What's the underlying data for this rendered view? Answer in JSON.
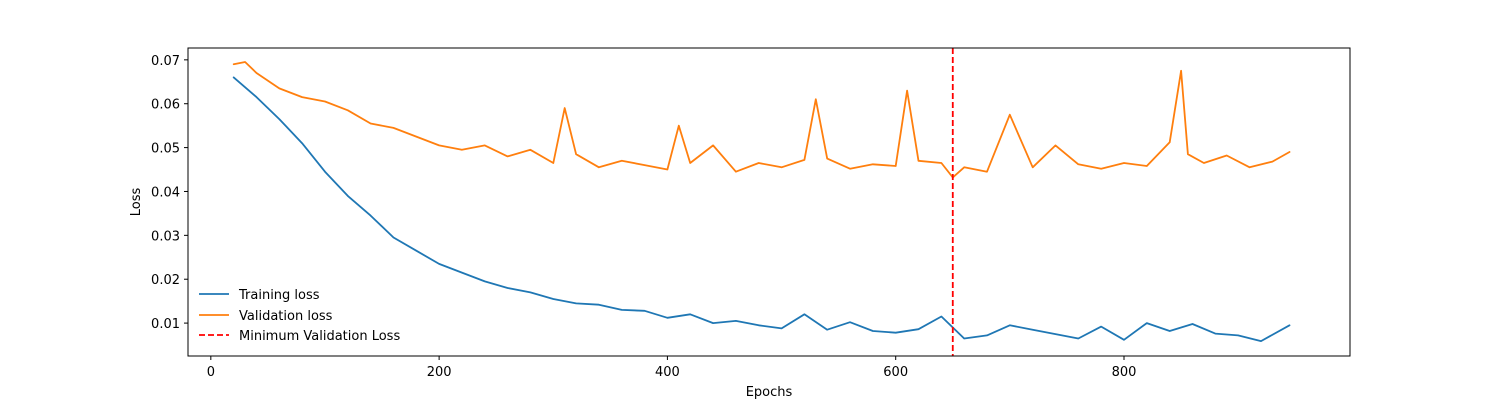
{
  "chart_data": {
    "type": "line",
    "title": "",
    "xlabel": "Epochs",
    "ylabel": "Loss",
    "xlim": [
      -20,
      998
    ],
    "ylim": [
      0.0025,
      0.0727
    ],
    "x_ticks": [
      0,
      200,
      400,
      600,
      800
    ],
    "y_ticks": [
      0.01,
      0.02,
      0.03,
      0.04,
      0.05,
      0.06,
      0.07
    ],
    "x_tick_labels": [
      "0",
      "200",
      "400",
      "600",
      "800"
    ],
    "y_tick_labels": [
      "0.01",
      "0.02",
      "0.03",
      "0.04",
      "0.05",
      "0.06",
      "0.07"
    ],
    "grid": false,
    "legend_position": "lower-left",
    "series": [
      {
        "name": "Training loss",
        "color": "#1f77b4",
        "style": "solid",
        "x": [
          20,
          40,
          60,
          80,
          100,
          120,
          140,
          160,
          180,
          200,
          220,
          240,
          260,
          280,
          300,
          320,
          340,
          360,
          380,
          400,
          420,
          440,
          460,
          480,
          500,
          520,
          540,
          560,
          580,
          600,
          620,
          640,
          660,
          680,
          700,
          720,
          740,
          760,
          780,
          800,
          820,
          840,
          860,
          880,
          900,
          920,
          945
        ],
        "values": [
          0.066,
          0.0615,
          0.0565,
          0.051,
          0.0445,
          0.039,
          0.0345,
          0.0295,
          0.0265,
          0.0235,
          0.0215,
          0.0195,
          0.018,
          0.017,
          0.0155,
          0.0145,
          0.0142,
          0.013,
          0.0128,
          0.0112,
          0.012,
          0.01,
          0.0105,
          0.0095,
          0.0088,
          0.012,
          0.0085,
          0.0102,
          0.0082,
          0.0078,
          0.0086,
          0.0115,
          0.0065,
          0.0072,
          0.0095,
          0.0085,
          0.0075,
          0.0065,
          0.0092,
          0.0062,
          0.01,
          0.0082,
          0.0098,
          0.0076,
          0.0072,
          0.0059,
          0.0095
        ]
      },
      {
        "name": "Validation loss",
        "color": "#ff7f0e",
        "style": "solid",
        "x": [
          20,
          30,
          40,
          60,
          80,
          100,
          120,
          140,
          160,
          180,
          200,
          220,
          240,
          260,
          280,
          300,
          310,
          320,
          340,
          360,
          380,
          400,
          410,
          420,
          440,
          460,
          480,
          500,
          520,
          530,
          540,
          560,
          580,
          600,
          610,
          620,
          640,
          650,
          660,
          680,
          700,
          720,
          740,
          760,
          780,
          800,
          820,
          840,
          850,
          856,
          870,
          890,
          910,
          930,
          945
        ],
        "values": [
          0.069,
          0.0695,
          0.067,
          0.0635,
          0.0615,
          0.0605,
          0.0585,
          0.0555,
          0.0545,
          0.0525,
          0.0505,
          0.0495,
          0.0505,
          0.048,
          0.0495,
          0.0465,
          0.059,
          0.0485,
          0.0455,
          0.047,
          0.046,
          0.045,
          0.055,
          0.0465,
          0.0505,
          0.0445,
          0.0465,
          0.0455,
          0.0472,
          0.061,
          0.0475,
          0.0452,
          0.0462,
          0.0458,
          0.063,
          0.047,
          0.0465,
          0.0432,
          0.0455,
          0.0445,
          0.0575,
          0.0455,
          0.0505,
          0.0462,
          0.0452,
          0.0465,
          0.0458,
          0.0512,
          0.0675,
          0.0485,
          0.0465,
          0.0482,
          0.0455,
          0.0468,
          0.049
        ]
      }
    ],
    "reference_lines": [
      {
        "name": "Minimum Validation Loss",
        "axis": "x",
        "value": 650,
        "color": "#ff0000",
        "style": "dashed"
      }
    ]
  }
}
